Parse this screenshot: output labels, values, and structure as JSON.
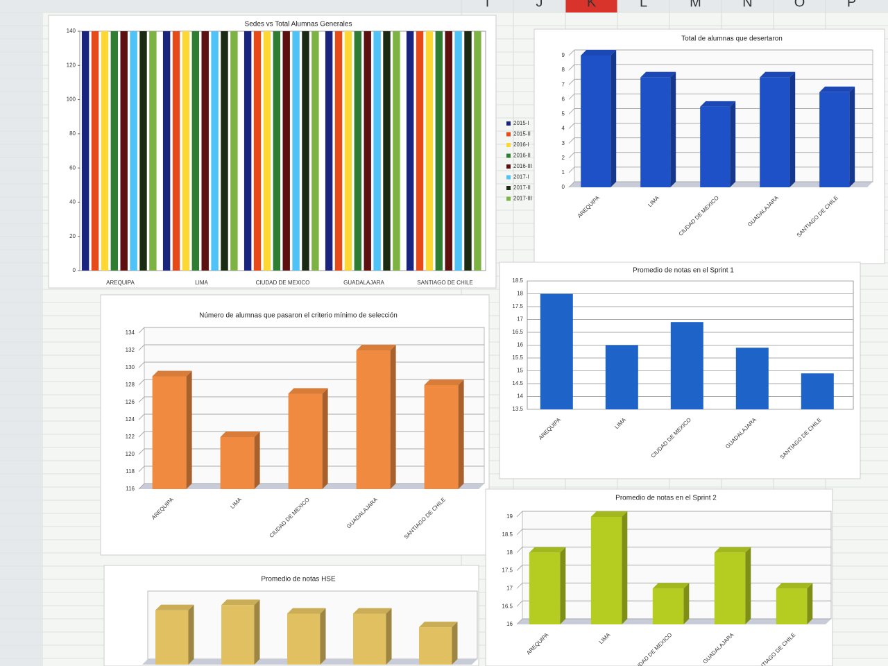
{
  "sheet": {
    "columns": [
      "I",
      "J",
      "K",
      "L",
      "M",
      "N",
      "O",
      "P"
    ],
    "selected_column": 2
  },
  "chart_data": [
    {
      "type": "bar",
      "title": "Sedes vs Total Alumnas Generales",
      "categories": [
        "AREQUIPA",
        "LIMA",
        "CIUDAD DE MEXICO",
        "GUADALAJARA",
        "SANTIAGO DE CHILE"
      ],
      "series": [
        {
          "name": "2015-I",
          "color": "#1a237e",
          "values": [
            140,
            140,
            140,
            140,
            140
          ]
        },
        {
          "name": "2015-II",
          "color": "#e64a19",
          "values": [
            140,
            140,
            140,
            140,
            140
          ]
        },
        {
          "name": "2016-I",
          "color": "#fdd835",
          "values": [
            140,
            140,
            140,
            140,
            140
          ]
        },
        {
          "name": "2016-II",
          "color": "#2e7d32",
          "values": [
            140,
            140,
            140,
            140,
            140
          ]
        },
        {
          "name": "2016-III",
          "color": "#5d1010",
          "values": [
            140,
            140,
            140,
            140,
            140
          ]
        },
        {
          "name": "2017-I",
          "color": "#4fc3f7",
          "values": [
            140,
            140,
            140,
            140,
            140
          ]
        },
        {
          "name": "2017-II",
          "color": "#1b2a12",
          "values": [
            140,
            140,
            140,
            140,
            140
          ]
        },
        {
          "name": "2017-III",
          "color": "#7cb342",
          "values": [
            140,
            140,
            140,
            140,
            140
          ]
        }
      ],
      "ylim": [
        0,
        140
      ],
      "yticks": [
        0,
        20,
        40,
        60,
        80,
        100,
        120,
        140
      ],
      "grid": false,
      "legend": "right",
      "three_d": false
    },
    {
      "type": "bar",
      "title": "Total de alumnas que desertaron",
      "categories": [
        "AREQUIPA",
        "LIMA",
        "CIUDAD DE MEXICO",
        "GUADALAJARA",
        "SANTIAGO DE CHILE"
      ],
      "values": [
        9,
        7.5,
        5.5,
        7.5,
        6.5
      ],
      "color": "#1e50c8",
      "ylim": [
        0,
        9
      ],
      "yticks": [
        0,
        1,
        2,
        3,
        4,
        5,
        6,
        7,
        8,
        9
      ],
      "grid": true,
      "three_d": true
    },
    {
      "type": "bar",
      "title": "Número de alumnas que pasaron el criterio mínimo de selección",
      "categories": [
        "AREQUIPA",
        "LIMA",
        "CIUDAD DE MEXICO",
        "GUADALAJARA",
        "SANTIAGO DE CHILE"
      ],
      "values": [
        129,
        122,
        127,
        132,
        128
      ],
      "color": "#f08a40",
      "ylim": [
        116,
        134
      ],
      "yticks": [
        116,
        118,
        120,
        122,
        124,
        126,
        128,
        130,
        132,
        134
      ],
      "grid": true,
      "three_d": true
    },
    {
      "type": "bar",
      "title": "Promedio de notas en el Sprint 1",
      "categories": [
        "AREQUIPA",
        "LIMA",
        "CIUDAD DE MEXICO",
        "GUADALAJARA",
        "SANTIAGO DE CHILE"
      ],
      "values": [
        18,
        16,
        16.9,
        15.9,
        14.9
      ],
      "color": "#1e64c8",
      "ylim": [
        13.5,
        18.5
      ],
      "yticks": [
        13.5,
        14,
        14.5,
        15,
        15.5,
        16,
        16.5,
        17,
        17.5,
        18,
        18.5
      ],
      "grid": true,
      "three_d": false
    },
    {
      "type": "bar",
      "title": "Promedio de notas en el Sprint 2",
      "categories": [
        "AREQUIPA",
        "LIMA",
        "CIUDAD DE MEXICO",
        "GUADALAJARA",
        "SANTIAGO DE CHILE"
      ],
      "values": [
        18,
        19,
        17,
        18,
        17
      ],
      "color": "#b5cc20",
      "ylim": [
        16,
        19
      ],
      "yticks": [
        16,
        16.5,
        17,
        17.5,
        18,
        18.5,
        19
      ],
      "grid": true,
      "three_d": true
    },
    {
      "type": "bar",
      "title": "Promedio de notas HSE",
      "categories": [
        null,
        null,
        null,
        null,
        null
      ],
      "values": [
        16,
        17.5,
        15,
        15,
        11
      ],
      "color": "#e0c060",
      "ylim": [
        0,
        20
      ],
      "grid": true,
      "three_d": true
    }
  ]
}
